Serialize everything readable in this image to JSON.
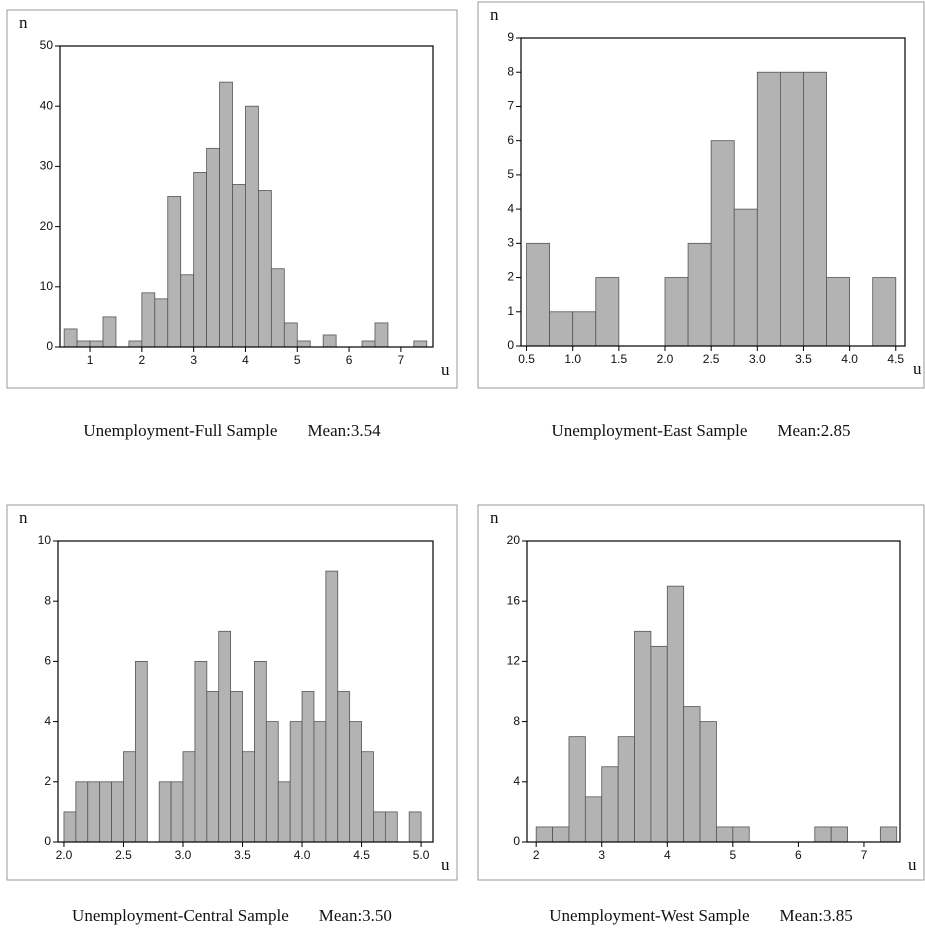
{
  "chart_data": [
    {
      "type": "histogram",
      "title": "Unemployment-Full Sample",
      "annotation": "Mean:3.54",
      "xlabel": "u",
      "ylabel": "n",
      "color": "#b3b3b3",
      "bins": [
        0.5,
        0.75,
        1.0,
        1.25,
        1.5,
        1.75,
        2.0,
        2.25,
        2.5,
        2.75,
        3.0,
        3.25,
        3.5,
        3.75,
        4.0,
        4.25,
        4.5,
        4.75,
        5.0,
        5.25,
        5.5,
        5.75,
        6.0,
        6.25,
        6.5,
        6.75,
        7.0,
        7.25,
        7.5
      ],
      "values": [
        3,
        1,
        1,
        5,
        0,
        1,
        9,
        8,
        25,
        12,
        29,
        33,
        44,
        27,
        40,
        26,
        13,
        4,
        1,
        0,
        2,
        0,
        0,
        1,
        4,
        0,
        0,
        1
      ],
      "xlim": [
        0.42,
        7.62
      ],
      "ylim": [
        0,
        50
      ],
      "xticks": [
        1,
        2,
        3,
        4,
        5,
        6,
        7
      ],
      "yticks": [
        0,
        10,
        20,
        30,
        40,
        50
      ]
    },
    {
      "type": "histogram",
      "title": "Unemployment-East Sample",
      "annotation": "Mean:2.85",
      "xlabel": "u",
      "ylabel": "n",
      "color": "#b3b3b3",
      "bins": [
        0.5,
        0.75,
        1.0,
        1.25,
        1.5,
        1.75,
        2.0,
        2.25,
        2.5,
        2.75,
        3.0,
        3.25,
        3.5,
        3.75,
        4.0,
        4.25,
        4.5
      ],
      "values": [
        3,
        1,
        1,
        2,
        0,
        0,
        2,
        3,
        6,
        4,
        8,
        8,
        8,
        2,
        0,
        2
      ],
      "xlim": [
        0.44,
        4.6
      ],
      "ylim": [
        0,
        9
      ],
      "xticks": [
        {
          "value": 0.5,
          "label": "0.5"
        },
        {
          "value": 1,
          "label": "1.0"
        },
        {
          "value": 1.5,
          "label": "1.5"
        },
        {
          "value": 2,
          "label": "2.0"
        },
        {
          "value": 2.5,
          "label": "2.5"
        },
        {
          "value": 3,
          "label": "3.0"
        },
        {
          "value": 3.5,
          "label": "3.5"
        },
        {
          "value": 4,
          "label": "4.0"
        },
        {
          "value": 4.5,
          "label": "4.5"
        }
      ],
      "yticks": [
        0,
        1,
        2,
        3,
        4,
        5,
        6,
        7,
        8,
        9
      ]
    },
    {
      "type": "histogram",
      "title": "Unemployment-Central Sample",
      "annotation": "Mean:3.50",
      "xlabel": "u",
      "ylabel": "n",
      "color": "#b3b3b3",
      "bins": [
        2.0,
        2.1,
        2.2,
        2.3,
        2.4,
        2.5,
        2.6,
        2.7,
        2.8,
        2.9,
        3.0,
        3.1,
        3.2,
        3.3,
        3.4,
        3.5,
        3.6,
        3.7,
        3.8,
        3.9,
        4.0,
        4.1,
        4.2,
        4.3,
        4.4,
        4.5,
        4.6,
        4.7,
        4.8,
        4.9,
        5.0
      ],
      "values": [
        1,
        2,
        2,
        2,
        2,
        3,
        6,
        0,
        2,
        2,
        3,
        6,
        5,
        7,
        5,
        3,
        6,
        4,
        2,
        4,
        5,
        4,
        9,
        5,
        4,
        3,
        1,
        1,
        0,
        1
      ],
      "xlim": [
        1.95,
        5.1
      ],
      "ylim": [
        0,
        10
      ],
      "xticks": [
        {
          "value": 2,
          "label": "2.0"
        },
        {
          "value": 2.5,
          "label": "2.5"
        },
        {
          "value": 3,
          "label": "3.0"
        },
        {
          "value": 3.5,
          "label": "3.5"
        },
        {
          "value": 4,
          "label": "4.0"
        },
        {
          "value": 4.5,
          "label": "4.5"
        },
        {
          "value": 5,
          "label": "5.0"
        }
      ],
      "yticks": [
        0,
        2,
        4,
        6,
        8,
        10
      ]
    },
    {
      "type": "histogram",
      "title": "Unemployment-West Sample",
      "annotation": "Mean:3.85",
      "xlabel": "u",
      "ylabel": "n",
      "color": "#b3b3b3",
      "bins": [
        2.0,
        2.25,
        2.5,
        2.75,
        3.0,
        3.25,
        3.5,
        3.75,
        4.0,
        4.25,
        4.5,
        4.75,
        5.0,
        5.25,
        5.5,
        5.75,
        6.0,
        6.25,
        6.5,
        6.75,
        7.0,
        7.25,
        7.5
      ],
      "values": [
        1,
        1,
        7,
        3,
        5,
        7,
        14,
        13,
        17,
        9,
        8,
        1,
        1,
        0,
        0,
        0,
        0,
        1,
        1,
        0,
        0,
        1
      ],
      "xlim": [
        1.86,
        7.55
      ],
      "ylim": [
        0,
        20
      ],
      "xticks": [
        2,
        3,
        4,
        5,
        6,
        7
      ],
      "yticks": [
        0,
        4,
        8,
        12,
        16,
        20
      ]
    }
  ]
}
